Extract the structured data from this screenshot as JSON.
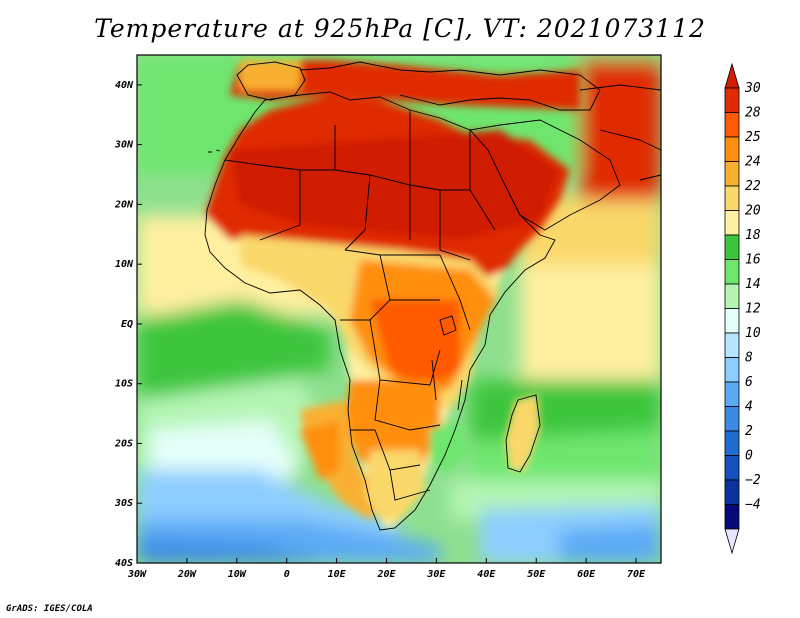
{
  "title": "Temperature at 925hPa [C], VT: 2021073112",
  "credit": "GrADS: IGES/COLA",
  "map": {
    "lon_range": [
      -30,
      75
    ],
    "lat_range": [
      -40,
      45
    ],
    "lon_ticks": [
      {
        "value": -30,
        "label": "30W"
      },
      {
        "value": -20,
        "label": "20W"
      },
      {
        "value": -10,
        "label": "10W"
      },
      {
        "value": 0,
        "label": "0"
      },
      {
        "value": 10,
        "label": "10E"
      },
      {
        "value": 20,
        "label": "20E"
      },
      {
        "value": 30,
        "label": "30E"
      },
      {
        "value": 40,
        "label": "40E"
      },
      {
        "value": 50,
        "label": "50E"
      },
      {
        "value": 60,
        "label": "60E"
      },
      {
        "value": 70,
        "label": "70E"
      }
    ],
    "lat_ticks": [
      {
        "value": 40,
        "label": "40N"
      },
      {
        "value": 30,
        "label": "30N"
      },
      {
        "value": 20,
        "label": "20N"
      },
      {
        "value": 10,
        "label": "10N"
      },
      {
        "value": 0,
        "label": "EQ"
      },
      {
        "value": -10,
        "label": "10S"
      },
      {
        "value": -20,
        "label": "20S"
      },
      {
        "value": -30,
        "label": "30S"
      },
      {
        "value": -40,
        "label": "40S"
      }
    ]
  },
  "colorbar": {
    "levels": [
      {
        "label": "30",
        "color": "#e02c00"
      },
      {
        "label": "28",
        "color": "#ff5a00"
      },
      {
        "label": "25",
        "color": "#ff8f10"
      },
      {
        "label": "24",
        "color": "#f9b030"
      },
      {
        "label": "22",
        "color": "#fad86a"
      },
      {
        "label": "20",
        "color": "#fff0a0"
      },
      {
        "label": "18",
        "color": "#3cc63c"
      },
      {
        "label": "16",
        "color": "#6ee66e"
      },
      {
        "label": "14",
        "color": "#b4f5b4"
      },
      {
        "label": "12",
        "color": "#e4fffa"
      },
      {
        "label": "10",
        "color": "#b4e6ff"
      },
      {
        "label": "8",
        "color": "#8ccdff"
      },
      {
        "label": "6",
        "color": "#5aaaf5"
      },
      {
        "label": "4",
        "color": "#3a8ae6"
      },
      {
        "label": "2",
        "color": "#1e6ed2"
      },
      {
        "label": "0",
        "color": "#1450be"
      },
      {
        "label": "−2",
        "color": "#0a32a0"
      },
      {
        "label": "−4",
        "color": "#050a78"
      }
    ],
    "top_color": "#d21e00",
    "bottom_color": "#e6e6ff"
  }
}
